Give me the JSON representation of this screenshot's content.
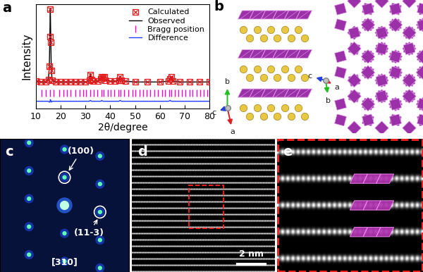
{
  "panel_labels": [
    "a",
    "b",
    "c",
    "d",
    "e"
  ],
  "chart_data": {
    "type": "line",
    "x_label": "2θ/degree",
    "y_label": "Intensity",
    "x": [
      10,
      12,
      14,
      15,
      15.4,
      15.6,
      15.8,
      16.0,
      16.2,
      16.6,
      18,
      20,
      22,
      24,
      26,
      28,
      30,
      31.5,
      32.0,
      32.4,
      33,
      35,
      36.2,
      36.6,
      37.0,
      37.5,
      38,
      40,
      42,
      43.5,
      44.0,
      44.5,
      46,
      50,
      55,
      60,
      63.5,
      64.2,
      64.6,
      65.2,
      68,
      72,
      76,
      80
    ],
    "series": [
      {
        "name": "Calculated",
        "type": "scatter",
        "color": "#e41a1c",
        "marker": "crossed_square",
        "values": [
          8,
          7,
          7,
          10,
          26,
          61,
          94,
          54,
          21,
          9,
          7,
          7,
          7,
          7,
          7,
          7,
          7,
          9,
          16,
          10,
          8,
          8,
          11,
          13,
          12,
          13,
          9,
          8,
          8,
          9,
          13,
          9,
          8,
          7,
          7,
          7,
          8,
          11,
          13,
          8,
          7,
          7,
          7,
          7
        ]
      },
      {
        "name": "Observed",
        "type": "line",
        "color": "#000000",
        "line_style": "solid",
        "values": [
          8,
          7,
          7,
          10,
          25,
          60,
          95,
          55,
          20,
          9,
          7,
          7,
          7,
          7,
          7,
          7,
          7,
          9,
          17,
          10,
          8,
          8,
          11,
          14,
          12,
          13,
          9,
          8,
          8,
          9,
          14,
          9,
          8,
          7,
          7,
          7,
          8,
          12,
          13,
          8,
          7,
          7,
          7,
          7
        ]
      },
      {
        "name": "Bragg position",
        "type": "scatter",
        "color": "#ff00cc",
        "marker": "vline",
        "x": [
          12.4,
          13.9,
          15.8,
          17.1,
          19.3,
          21.0,
          22.6,
          24.0,
          25.8,
          27.5,
          29.1,
          30.2,
          31.9,
          33.4,
          34.8,
          36.4,
          37.4,
          38.9,
          40.3,
          41.6,
          43.2,
          44.1,
          45.7,
          47.2,
          48.9,
          50.1,
          51.8,
          53.3,
          54.6,
          56.2,
          57.9,
          59.3,
          60.8,
          62.2,
          63.8,
          64.6,
          66.1,
          67.5,
          69.0,
          70.4,
          71.9,
          73.3,
          74.8,
          76.2,
          77.7,
          79.1
        ],
        "values": [
          -6,
          -6,
          -6,
          -6,
          -6,
          -6,
          -6,
          -6,
          -6,
          -6,
          -6,
          -6,
          -6,
          -6,
          -6,
          -6,
          -6,
          -6,
          -6,
          -6,
          -6,
          -6,
          -6,
          -6,
          -6,
          -6,
          -6,
          -6,
          -6,
          -6,
          -6,
          -6,
          -6,
          -6,
          -6,
          -6,
          -6,
          -6,
          -6,
          -6,
          -6,
          -6,
          -6,
          -6,
          -6,
          -6
        ]
      },
      {
        "name": "Difference",
        "type": "line",
        "color": "#1f3fff",
        "line_style": "solid",
        "values": [
          -16,
          -16,
          -16,
          -16,
          -17,
          -17,
          -14,
          -15,
          -17,
          -16,
          -16,
          -16,
          -16,
          -16,
          -16,
          -16,
          -16,
          -16,
          -15,
          -16,
          -16,
          -16,
          -16,
          -15,
          -16,
          -16,
          -16,
          -16,
          -16,
          -16,
          -15,
          -16,
          -16,
          -16,
          -16,
          -16,
          -16,
          -15,
          -16,
          -16,
          -16,
          -16,
          -16,
          -16
        ]
      }
    ],
    "xlim": [
      10,
      80
    ],
    "xticks": [
      10,
      20,
      30,
      40,
      50,
      60,
      70,
      80
    ],
    "ylim": [
      -25,
      100
    ],
    "yticks": [],
    "tick_labels": "x",
    "legend": "upper right"
  },
  "structure": {
    "triad_left": [
      "b",
      "c",
      "a"
    ],
    "triad_right": [
      "c",
      "b",
      "a"
    ]
  },
  "saed": {
    "spot_labels": [
      "(100)",
      "(11-3)"
    ],
    "zone_axis": "[310]"
  },
  "tem": {
    "scale_bar": "2 nm"
  }
}
